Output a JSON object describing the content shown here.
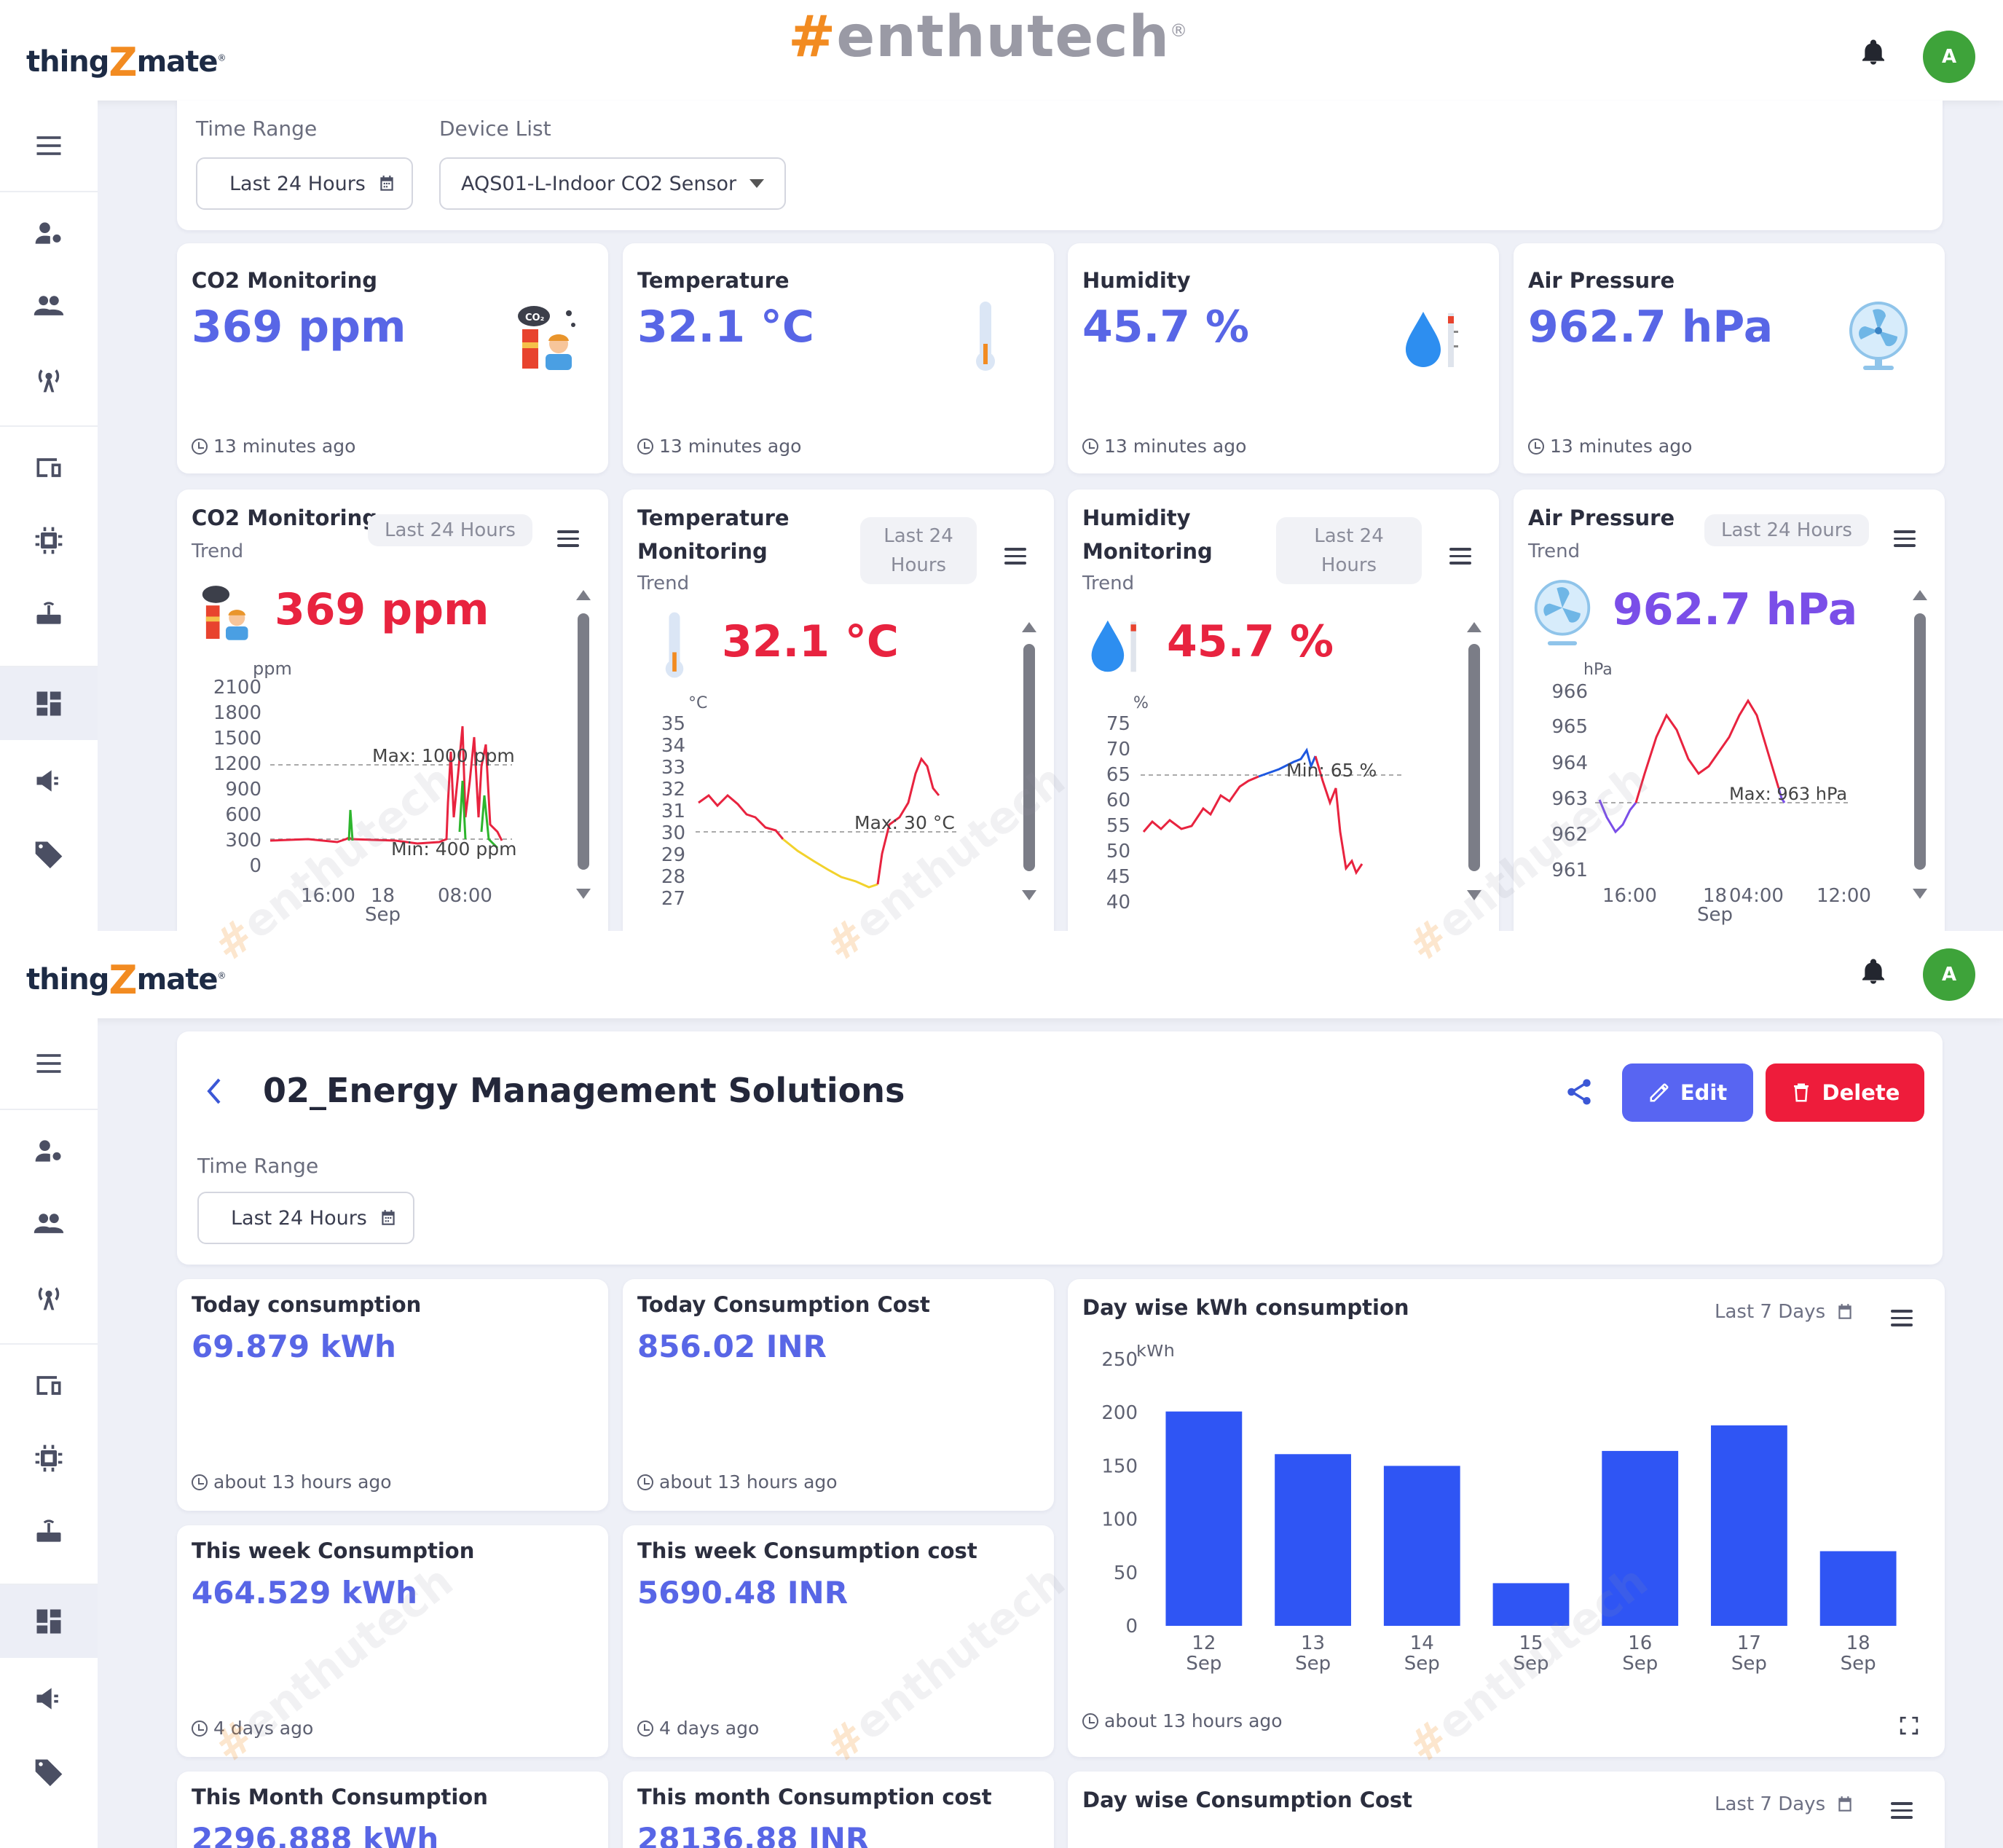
{
  "brand": {
    "logo_left": "thing",
    "logo_z": "Z",
    "logo_right": "mate",
    "watermark": "enthutech",
    "watermark_hash": "#"
  },
  "avatar_initial": "A",
  "colors": {
    "accent": "#5866e6",
    "danger": "#e8233f",
    "edit_btn": "#5865f2",
    "delete_btn": "#ee1c3b",
    "avatar": "#3ea33a",
    "bar": "#2f55f4"
  },
  "screen1": {
    "filters": {
      "time_range_label": "Time Range",
      "time_range_value": "Last 24 Hours",
      "device_list_label": "Device List",
      "device_list_value": "AQS01-L-Indoor CO2 Sensor"
    },
    "stat_cards": [
      {
        "title": "CO2 Monitoring",
        "value": "369 ppm",
        "ago": "13 minutes ago",
        "icon": "co2-person-icon"
      },
      {
        "title": "Temperature",
        "value": "32.1 °C",
        "ago": "13 minutes ago",
        "icon": "thermometer-icon"
      },
      {
        "title": "Humidity",
        "value": "45.7 %",
        "ago": "13 minutes ago",
        "icon": "water-drop-icon"
      },
      {
        "title": "Air Pressure",
        "value": "962.7 hPa",
        "ago": "13 minutes ago",
        "icon": "fan-icon"
      }
    ],
    "trend_cards": [
      {
        "title": "CO2 Monitoring",
        "subtitle": "Trend",
        "range": "Last 24 Hours",
        "value": "369 ppm",
        "unit": "ppm",
        "y_ticks": [
          "2100",
          "1800",
          "1500",
          "1200",
          "900",
          "600",
          "300",
          "0"
        ],
        "x_ticks": [
          "16:00",
          "18",
          "Sep",
          "08:00"
        ],
        "max_label": "Max: 1000 ppm",
        "min_label": "Min: 400 ppm"
      },
      {
        "title": "Temperature",
        "title2": "Monitoring",
        "subtitle": "Trend",
        "range": "Last 24",
        "range2": "Hours",
        "value": "32.1 °C",
        "unit": "°C",
        "y_ticks": [
          "35",
          "34",
          "33",
          "32",
          "31",
          "30",
          "29",
          "28",
          "27"
        ],
        "max_label": "Max: 30 °C"
      },
      {
        "title": "Humidity",
        "title2": "Monitoring",
        "subtitle": "Trend",
        "range": "Last 24",
        "range2": "Hours",
        "value": "45.7 %",
        "unit": "%",
        "y_ticks": [
          "75",
          "70",
          "65",
          "60",
          "55",
          "50",
          "45",
          "40"
        ],
        "min_label": "Min: 65 %"
      },
      {
        "title": "Air Pressure",
        "subtitle": "Trend",
        "range": "Last 24 Hours",
        "value": "962.7 hPa",
        "unit": "hPa",
        "y_ticks": [
          "966",
          "965",
          "964",
          "963",
          "962",
          "961"
        ],
        "x_ticks": [
          "16:00",
          "18",
          "Sep",
          "04:00",
          "12:00"
        ],
        "max_label": "Max: 963 hPa"
      }
    ]
  },
  "screen2": {
    "page_title": "02_Energy Management Solutions",
    "edit_label": "Edit",
    "delete_label": "Delete",
    "time_range_label": "Time Range",
    "time_range_value": "Last 24 Hours",
    "stat_cards": [
      {
        "title": "Today consumption",
        "value": "69.879 kWh",
        "ago": "about 13 hours ago"
      },
      {
        "title": "Today Consumption Cost",
        "value": "856.02 INR",
        "ago": "about 13 hours ago"
      },
      {
        "title": "This week Consumption",
        "value": "464.529 kWh",
        "ago": "4 days ago"
      },
      {
        "title": "This week Consumption cost",
        "value": "5690.48 INR",
        "ago": "4 days ago"
      },
      {
        "title": "This Month Consumption",
        "value": "2296.888 kWh"
      },
      {
        "title": "This month Consumption cost",
        "value": "28136.88 INR"
      }
    ],
    "bar_card": {
      "title": "Day wise kWh consumption",
      "range": "Last 7 Days",
      "ago": "about 13 hours ago"
    },
    "cost_card": {
      "title": "Day wise Consumption Cost",
      "range": "Last 7 Days"
    }
  },
  "chart_data": [
    {
      "type": "bar",
      "title": "Day wise kWh consumption",
      "ylabel": "kWh",
      "categories": [
        "12 Sep",
        "13 Sep",
        "14 Sep",
        "15 Sep",
        "16 Sep",
        "17 Sep",
        "18 Sep"
      ],
      "values": [
        201,
        161,
        150,
        40,
        164,
        188,
        70
      ],
      "ylim": [
        0,
        250
      ],
      "y_ticks": [
        0,
        50,
        100,
        150,
        200,
        250
      ]
    }
  ]
}
